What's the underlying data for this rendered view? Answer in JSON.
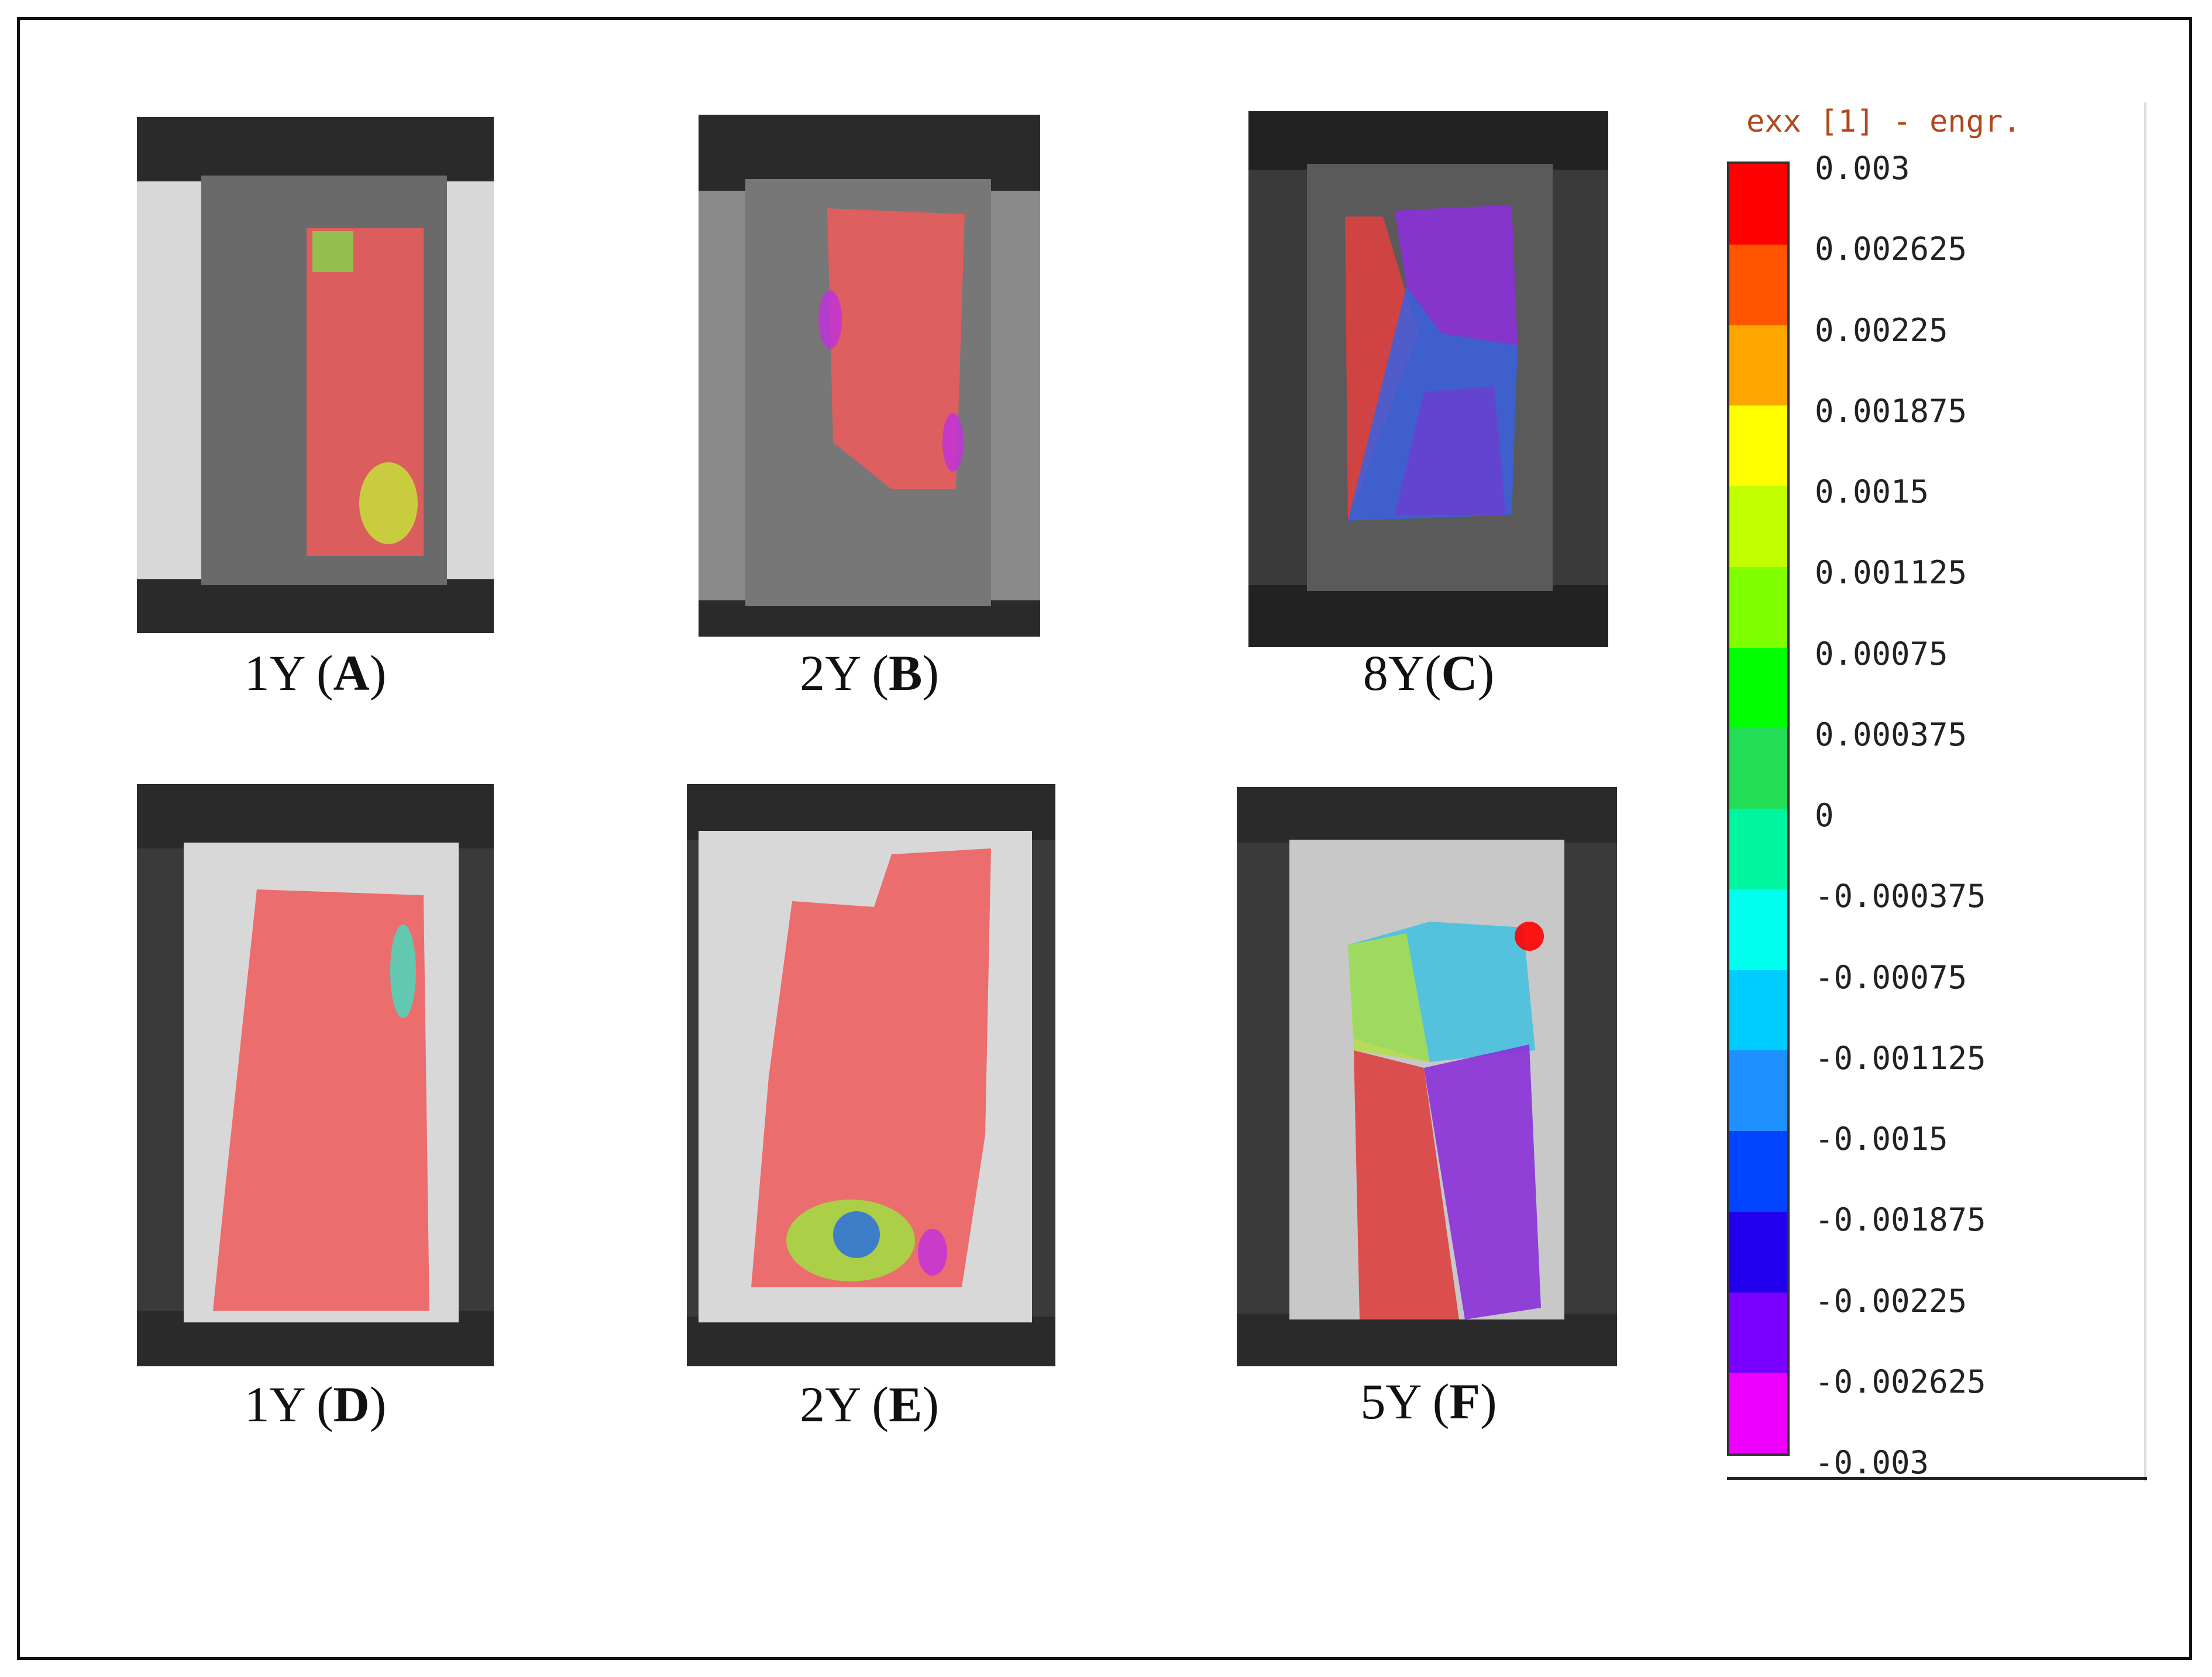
{
  "panels": [
    {
      "label_prefix": "1Y (",
      "letter": "A",
      "label_suffix": ")",
      "overlay": "red",
      "icon": "specimen-dic-photo"
    },
    {
      "label_prefix": "2Y (",
      "letter": "B",
      "label_suffix": ")",
      "overlay": "red",
      "icon": "specimen-dic-photo"
    },
    {
      "label_prefix": "8Y(",
      "letter": "C",
      "label_suffix": ")",
      "overlay": "red-blue-violet",
      "icon": "specimen-dic-photo"
    },
    {
      "label_prefix": "1Y (",
      "letter": "D",
      "label_suffix": ")",
      "overlay": "red",
      "icon": "specimen-dic-photo"
    },
    {
      "label_prefix": "2Y (",
      "letter": "E",
      "label_suffix": ")",
      "overlay": "red",
      "icon": "specimen-dic-photo"
    },
    {
      "label_prefix": "5Y (",
      "letter": "F",
      "label_suffix": ")",
      "overlay": "red-blue-violet",
      "icon": "specimen-dic-photo"
    }
  ],
  "legend": {
    "title": "exx [1] - engr.",
    "ticks": [
      "0.003",
      "0.002625",
      "0.00225",
      "0.001875",
      "0.0015",
      "0.001125",
      "0.00075",
      "0.000375",
      "0",
      "-0.000375",
      "-0.00075",
      "-0.001125",
      "-0.0015",
      "-0.001875",
      "-0.00225",
      "-0.002625",
      "-0.003"
    ],
    "colors": [
      "#ff0000",
      "#ff5500",
      "#ffa500",
      "#ffff00",
      "#bfff00",
      "#7fff00",
      "#00ff00",
      "#22dd55",
      "#00f5a0",
      "#00ffee",
      "#00ccff",
      "#1e90ff",
      "#0044ff",
      "#2200ee",
      "#7a00ff",
      "#ee00ff"
    ]
  }
}
